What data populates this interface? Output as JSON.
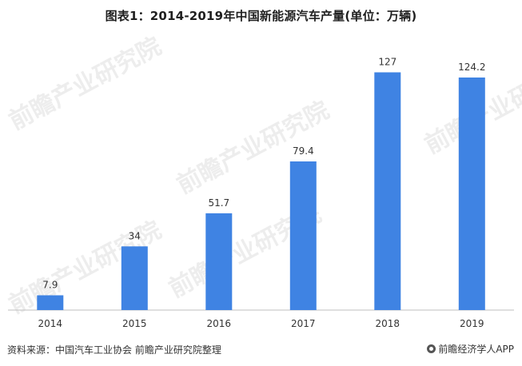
{
  "title": "图表1：2014-2019年中国新能源汽车产量(单位：万辆)",
  "source": "资料来源：中国汽车工业协会 前瞻产业研究院整理",
  "brand": "前瞻经济学人APP",
  "watermark": "前瞻产业研究院",
  "colors": {
    "bar": "#3f83e3",
    "axis": "#bfbfbf"
  },
  "chart_data": {
    "type": "bar",
    "categories": [
      "2014",
      "2015",
      "2016",
      "2017",
      "2018",
      "2019"
    ],
    "values": [
      7.9,
      34,
      51.7,
      79.4,
      127,
      124.2
    ],
    "value_labels": [
      "7.9",
      "34",
      "51.7",
      "79.4",
      "127",
      "124.2"
    ],
    "title": "图表1：2014-2019年中国新能源汽车产量(单位：万辆)",
    "unit": "万辆",
    "ylim": [
      0,
      140
    ],
    "grid": false
  }
}
